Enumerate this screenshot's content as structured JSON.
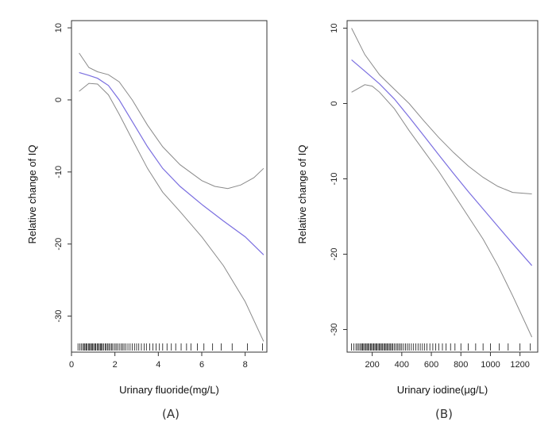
{
  "chart_data": [
    {
      "type": "line",
      "panel_label": "(A)",
      "xlabel": "Urinary fluoride(mg/L)",
      "ylabel": "Relative change of IQ",
      "xlim": [
        0,
        9
      ],
      "ylim": [
        -35,
        11
      ],
      "xticks": [
        0,
        2,
        4,
        6,
        8
      ],
      "yticks": [
        10,
        0,
        -10,
        -20,
        -30
      ],
      "grid": false,
      "colors": {
        "fit": "#7b6fe0",
        "ci": "#8a8a8a",
        "rug": "#111111"
      },
      "series": [
        {
          "role": "fit",
          "x": [
            0.35,
            0.8,
            1.2,
            1.7,
            2.2,
            2.8,
            3.5,
            4.2,
            5.0,
            6.0,
            7.0,
            8.0,
            8.85
          ],
          "y": [
            3.8,
            3.4,
            3.0,
            2.0,
            0.0,
            -3.0,
            -6.5,
            -9.5,
            -12.0,
            -14.5,
            -16.8,
            -19.0,
            -21.5
          ]
        },
        {
          "role": "upper_ci",
          "x": [
            0.35,
            0.8,
            1.2,
            1.7,
            2.2,
            2.8,
            3.5,
            4.2,
            5.0,
            6.0,
            6.6,
            7.2,
            7.8,
            8.4,
            8.85
          ],
          "y": [
            6.5,
            4.5,
            3.9,
            3.5,
            2.5,
            0.0,
            -3.5,
            -6.5,
            -9.0,
            -11.2,
            -12.0,
            -12.3,
            -11.8,
            -10.8,
            -9.5
          ]
        },
        {
          "role": "lower_ci",
          "x": [
            0.35,
            0.8,
            1.2,
            1.7,
            2.2,
            2.8,
            3.5,
            4.2,
            5.0,
            6.0,
            7.0,
            8.0,
            8.85
          ],
          "y": [
            1.2,
            2.3,
            2.2,
            0.7,
            -2.0,
            -5.5,
            -9.5,
            -12.8,
            -15.5,
            -19.0,
            -23.0,
            -28.0,
            -33.5
          ]
        }
      ],
      "rug": [
        0.3,
        0.38,
        0.45,
        0.52,
        0.58,
        0.62,
        0.68,
        0.72,
        0.78,
        0.82,
        0.88,
        0.92,
        0.97,
        1.02,
        1.08,
        1.12,
        1.18,
        1.22,
        1.28,
        1.33,
        1.38,
        1.42,
        1.48,
        1.55,
        1.6,
        1.66,
        1.72,
        1.78,
        1.85,
        1.9,
        1.98,
        2.05,
        2.12,
        2.2,
        2.28,
        2.35,
        2.42,
        2.5,
        2.6,
        2.7,
        2.8,
        2.9,
        3.0,
        3.1,
        3.22,
        3.35,
        3.45,
        3.6,
        3.75,
        3.9,
        4.05,
        4.2,
        4.4,
        4.6,
        4.8,
        5.05,
        5.3,
        5.5,
        5.8,
        6.1,
        6.5,
        6.9,
        7.4,
        8.1,
        8.8
      ]
    },
    {
      "type": "line",
      "panel_label": "(B)",
      "xlabel": "Urinary iodine(μg/L)",
      "ylabel": "Relative change of IQ",
      "xlim": [
        30,
        1320
      ],
      "ylim": [
        -33,
        11
      ],
      "xticks": [
        200,
        400,
        600,
        800,
        1000,
        1200
      ],
      "yticks": [
        10,
        0,
        -10,
        -20,
        -30
      ],
      "grid": false,
      "colors": {
        "fit": "#7b6fe0",
        "ci": "#8a8a8a",
        "rug": "#111111"
      },
      "series": [
        {
          "role": "fit",
          "x": [
            60,
            150,
            250,
            350,
            450,
            550,
            650,
            750,
            850,
            950,
            1050,
            1150,
            1280
          ],
          "y": [
            5.8,
            4.3,
            2.6,
            0.6,
            -1.8,
            -4.3,
            -6.8,
            -9.3,
            -11.7,
            -14.0,
            -16.3,
            -18.6,
            -21.5
          ]
        },
        {
          "role": "upper_ci",
          "x": [
            60,
            150,
            250,
            350,
            450,
            550,
            650,
            750,
            850,
            950,
            1050,
            1150,
            1280
          ],
          "y": [
            10.0,
            6.5,
            3.8,
            1.9,
            0.0,
            -2.3,
            -4.5,
            -6.5,
            -8.3,
            -9.8,
            -11.0,
            -11.8,
            -12.0
          ]
        },
        {
          "role": "lower_ci",
          "x": [
            60,
            150,
            200,
            250,
            350,
            450,
            550,
            650,
            750,
            850,
            950,
            1050,
            1150,
            1280
          ],
          "y": [
            1.5,
            2.5,
            2.3,
            1.5,
            -0.7,
            -3.6,
            -6.3,
            -9.0,
            -12.0,
            -15.0,
            -18.0,
            -21.5,
            -25.5,
            -31.0
          ]
        }
      ],
      "rug": [
        60,
        75,
        90,
        100,
        110,
        120,
        128,
        135,
        142,
        150,
        158,
        165,
        172,
        180,
        188,
        195,
        203,
        210,
        218,
        225,
        232,
        240,
        248,
        255,
        262,
        270,
        278,
        285,
        293,
        300,
        308,
        316,
        324,
        332,
        340,
        350,
        360,
        370,
        380,
        390,
        400,
        412,
        425,
        438,
        450,
        465,
        480,
        495,
        510,
        525,
        540,
        555,
        570,
        590,
        610,
        630,
        650,
        675,
        700,
        730,
        760,
        800,
        850,
        900,
        950,
        1000,
        1060,
        1120,
        1200,
        1270
      ]
    }
  ]
}
